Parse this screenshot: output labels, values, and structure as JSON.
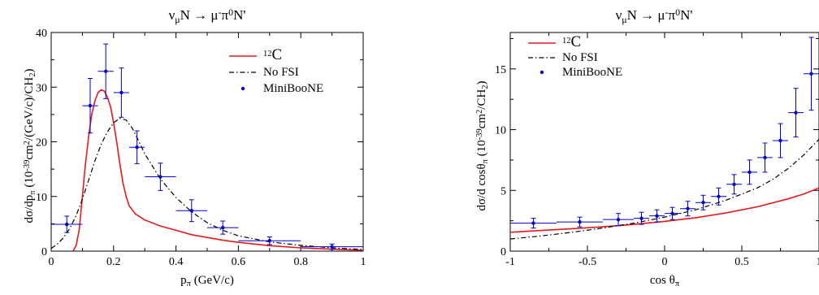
{
  "chart_data": [
    {
      "type": "line",
      "title": "ν_μN → μ⁻π⁰N'",
      "xlabel": "p_π (GeV/c)",
      "ylabel": "dσ/dp_π (10⁻³⁹cm²/(GeV/c)/CH₂)",
      "xlim": [
        0,
        1
      ],
      "ylim": [
        0,
        40
      ],
      "xticks": [
        "0",
        "0.2",
        "0.4",
        "0.6",
        "0.8",
        "1"
      ],
      "yticks": [
        "0",
        "10",
        "20",
        "30",
        "40"
      ],
      "grid": false,
      "legend_position": "top-right",
      "series": [
        {
          "name": "12C",
          "color": "#e41a1c",
          "style": "solid",
          "points": [
            [
              0.07,
              0
            ],
            [
              0.08,
              1
            ],
            [
              0.09,
              4
            ],
            [
              0.1,
              10
            ],
            [
              0.11,
              16
            ],
            [
              0.12,
              21
            ],
            [
              0.13,
              25
            ],
            [
              0.14,
              27.5
            ],
            [
              0.15,
              29
            ],
            [
              0.16,
              29.5
            ],
            [
              0.17,
              29.3
            ],
            [
              0.18,
              28.2
            ],
            [
              0.19,
              26.5
            ],
            [
              0.2,
              23.5
            ],
            [
              0.21,
              20
            ],
            [
              0.22,
              16
            ],
            [
              0.23,
              12.5
            ],
            [
              0.24,
              10
            ],
            [
              0.25,
              8.3
            ],
            [
              0.27,
              6.8
            ],
            [
              0.3,
              5.7
            ],
            [
              0.35,
              4.6
            ],
            [
              0.4,
              3.8
            ],
            [
              0.45,
              3.0
            ],
            [
              0.5,
              2.5
            ],
            [
              0.55,
              2.0
            ],
            [
              0.6,
              1.6
            ],
            [
              0.7,
              1.0
            ],
            [
              0.8,
              0.6
            ],
            [
              0.9,
              0.35
            ],
            [
              1.0,
              0.15
            ]
          ]
        },
        {
          "name": "No FSI",
          "color": "#000000",
          "style": "dashdot",
          "points": [
            [
              0.0,
              0.5
            ],
            [
              0.02,
              1.3
            ],
            [
              0.04,
              2.5
            ],
            [
              0.06,
              4.2
            ],
            [
              0.08,
              6.5
            ],
            [
              0.1,
              9.5
            ],
            [
              0.12,
              13
            ],
            [
              0.14,
              16.5
            ],
            [
              0.16,
              19.5
            ],
            [
              0.18,
              21.8
            ],
            [
              0.2,
              23.5
            ],
            [
              0.22,
              24.3
            ],
            [
              0.24,
              24
            ],
            [
              0.26,
              22.5
            ],
            [
              0.28,
              20.2
            ],
            [
              0.3,
              17.8
            ],
            [
              0.35,
              13.2
            ],
            [
              0.4,
              9.8
            ],
            [
              0.45,
              7.2
            ],
            [
              0.5,
              5.2
            ],
            [
              0.55,
              3.8
            ],
            [
              0.6,
              2.8
            ],
            [
              0.7,
              1.7
            ],
            [
              0.8,
              1.05
            ],
            [
              0.9,
              0.6
            ],
            [
              1.0,
              0.3
            ]
          ]
        },
        {
          "name": "MiniBooNE",
          "color": "#0000cc",
          "style": "points",
          "points": [
            {
              "x": 0.05,
              "y": 4.9,
              "xerr": 0.05,
              "yerr": 1.5
            },
            {
              "x": 0.125,
              "y": 26.6,
              "xerr": 0.025,
              "yerr": 5
            },
            {
              "x": 0.175,
              "y": 32.9,
              "xerr": 0.025,
              "yerr": 5
            },
            {
              "x": 0.225,
              "y": 29.0,
              "xerr": 0.025,
              "yerr": 4.5
            },
            {
              "x": 0.275,
              "y": 19.0,
              "xerr": 0.025,
              "yerr": 3
            },
            {
              "x": 0.35,
              "y": 13.6,
              "xerr": 0.05,
              "yerr": 2.5
            },
            {
              "x": 0.45,
              "y": 7.4,
              "xerr": 0.05,
              "yerr": 2
            },
            {
              "x": 0.55,
              "y": 4.3,
              "xerr": 0.05,
              "yerr": 1.2
            },
            {
              "x": 0.7,
              "y": 1.9,
              "xerr": 0.1,
              "yerr": 0.7
            },
            {
              "x": 0.9,
              "y": 0.8,
              "xerr": 0.1,
              "yerr": 0.5
            }
          ]
        }
      ]
    },
    {
      "type": "line",
      "title": "ν_μN → μ⁻π⁰N'",
      "xlabel": "cos θ_π",
      "ylabel": "dσ/d cosθ_π (10⁻³⁹cm²/CH₂)",
      "xlim": [
        -1,
        1
      ],
      "ylim": [
        0,
        18
      ],
      "xticks": [
        "-1",
        "-0.5",
        "0",
        "0.5",
        "1"
      ],
      "yticks": [
        "0",
        "5",
        "10",
        "15"
      ],
      "grid": false,
      "legend_position": "top-left",
      "series": [
        {
          "name": "12C",
          "color": "#e41a1c",
          "style": "solid",
          "points": [
            [
              -1,
              1.55
            ],
            [
              -0.8,
              1.7
            ],
            [
              -0.6,
              1.85
            ],
            [
              -0.4,
              2.0
            ],
            [
              -0.2,
              2.2
            ],
            [
              0,
              2.45
            ],
            [
              0.2,
              2.75
            ],
            [
              0.4,
              3.15
            ],
            [
              0.6,
              3.65
            ],
            [
              0.8,
              4.3
            ],
            [
              0.9,
              4.7
            ],
            [
              1.0,
              5.2
            ]
          ]
        },
        {
          "name": "No FSI",
          "color": "#000000",
          "style": "dashdot",
          "points": [
            [
              -1,
              1.0
            ],
            [
              -0.8,
              1.25
            ],
            [
              -0.6,
              1.55
            ],
            [
              -0.4,
              1.9
            ],
            [
              -0.2,
              2.3
            ],
            [
              0,
              2.8
            ],
            [
              0.2,
              3.4
            ],
            [
              0.4,
              4.2
            ],
            [
              0.6,
              5.2
            ],
            [
              0.7,
              5.9
            ],
            [
              0.8,
              6.8
            ],
            [
              0.9,
              7.9
            ],
            [
              1.0,
              9.2
            ]
          ]
        },
        {
          "name": "MiniBooNE",
          "color": "#0000cc",
          "style": "points",
          "points": [
            {
              "x": -0.85,
              "y": 2.3,
              "xerr": 0.15,
              "yerr": 0.4
            },
            {
              "x": -0.55,
              "y": 2.4,
              "xerr": 0.15,
              "yerr": 0.4
            },
            {
              "x": -0.3,
              "y": 2.6,
              "xerr": 0.1,
              "yerr": 0.5
            },
            {
              "x": -0.15,
              "y": 2.7,
              "xerr": 0.05,
              "yerr": 0.5
            },
            {
              "x": -0.05,
              "y": 2.9,
              "xerr": 0.05,
              "yerr": 0.5
            },
            {
              "x": 0.05,
              "y": 3.1,
              "xerr": 0.05,
              "yerr": 0.5
            },
            {
              "x": 0.15,
              "y": 3.5,
              "xerr": 0.05,
              "yerr": 0.6
            },
            {
              "x": 0.25,
              "y": 4.0,
              "xerr": 0.05,
              "yerr": 0.6
            },
            {
              "x": 0.35,
              "y": 4.5,
              "xerr": 0.05,
              "yerr": 0.7
            },
            {
              "x": 0.45,
              "y": 5.5,
              "xerr": 0.05,
              "yerr": 0.8
            },
            {
              "x": 0.55,
              "y": 6.5,
              "xerr": 0.05,
              "yerr": 1.0
            },
            {
              "x": 0.65,
              "y": 7.7,
              "xerr": 0.05,
              "yerr": 1.2
            },
            {
              "x": 0.75,
              "y": 9.1,
              "xerr": 0.05,
              "yerr": 1.4
            },
            {
              "x": 0.85,
              "y": 11.4,
              "xerr": 0.05,
              "yerr": 2.0
            },
            {
              "x": 0.95,
              "y": 14.6,
              "xerr": 0.05,
              "yerr": 3.0
            }
          ]
        }
      ]
    }
  ]
}
